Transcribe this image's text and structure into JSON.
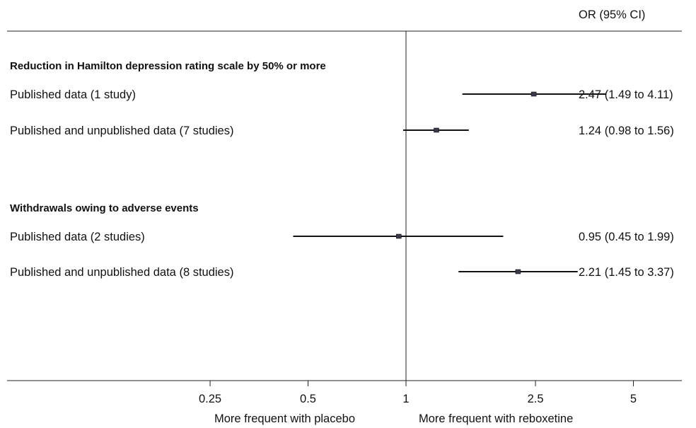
{
  "chart_data": {
    "type": "forest",
    "column_header": "OR (95% CI)",
    "x_scale": "log",
    "xlim": [
      0.1,
      10
    ],
    "reference_line": 1,
    "x_ticks": [
      "0.25",
      "0.5",
      "1",
      "2.5",
      "5"
    ],
    "x_tick_values": [
      0.25,
      0.5,
      1,
      2.5,
      5
    ],
    "direction_labels": {
      "left": "More frequent with placebo",
      "right": "More frequent with reboxetine"
    },
    "groups": [
      {
        "header": "Reduction in Hamilton depression rating scale by 50% or more",
        "rows": [
          {
            "label": "Published data (1 study)",
            "or": 2.47,
            "lower": 1.49,
            "upper": 4.11,
            "text": "2.47 (1.49 to 4.11)"
          },
          {
            "label": "Published and unpublished data (7 studies)",
            "or": 1.24,
            "lower": 0.98,
            "upper": 1.56,
            "text": "1.24 (0.98 to 1.56)"
          }
        ]
      },
      {
        "header": "Withdrawals owing to adverse events",
        "rows": [
          {
            "label": "Published data (2 studies)",
            "or": 0.95,
            "lower": 0.45,
            "upper": 1.99,
            "text": "0.95 (0.45 to 1.99)"
          },
          {
            "label": "Published and unpublished data (8 studies)",
            "or": 2.21,
            "lower": 1.45,
            "upper": 3.37,
            "text": "2.21 (1.45 to 3.37)"
          }
        ]
      }
    ]
  }
}
